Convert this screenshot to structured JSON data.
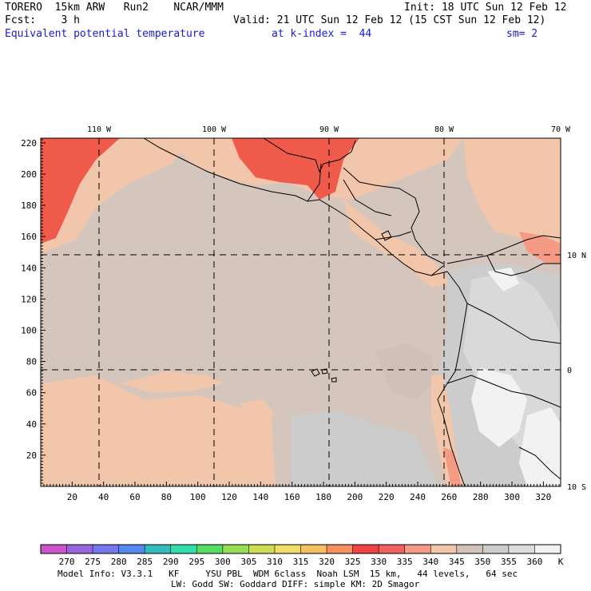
{
  "header": {
    "line1_left": "TORERO  15km ARW   Run2    NCAR/MMM",
    "line1_right": "Init: 18 UTC Sun 12 Feb 12",
    "line2_left": "Fcst:    3 h",
    "line2_right": "Valid: 21 UTC Sun 12 Feb 12 (15 CST Sun 12 Feb 12)",
    "field_name": "Equivalent potential temperature",
    "level": "at k-index =  44",
    "smoothing": "sm= 2"
  },
  "map": {
    "x_ticks": [
      "20",
      "40",
      "60",
      "80",
      "100",
      "120",
      "140",
      "160",
      "180",
      "200",
      "220",
      "240",
      "260",
      "280",
      "300",
      "320"
    ],
    "y_ticks": [
      "20",
      "40",
      "60",
      "80",
      "100",
      "120",
      "140",
      "160",
      "180",
      "200",
      "220"
    ],
    "lon_labels": [
      "110 W",
      "100 W",
      "90 W",
      "80 W",
      "70 W"
    ],
    "lat_labels": [
      "10 N",
      "0",
      "10 S"
    ]
  },
  "colorbar": {
    "labels": [
      "270",
      "275",
      "280",
      "285",
      "290",
      "295",
      "300",
      "305",
      "310",
      "315",
      "320",
      "325",
      "330",
      "335",
      "340",
      "345",
      "350",
      "355",
      "360"
    ],
    "unit": "K",
    "colors": [
      "#cc55cc",
      "#9966dd",
      "#7777ee",
      "#5588ee",
      "#33bbbb",
      "#33ddaa",
      "#55dd66",
      "#99dd55",
      "#ccdd55",
      "#eedd66",
      "#f5c060",
      "#f59060",
      "#ee4444",
      "#f26060",
      "#f59a85",
      "#f2c6aa",
      "#d2c2b8",
      "#cccccc",
      "#dddddd",
      "#f2f2f2"
    ]
  },
  "footer": {
    "line1": "Model Info: V3.3.1   KF     YSU PBL  WDM 6class  Noah LSM  15 km,   44 levels,   64 sec",
    "line2": "LW: Godd SW: Goddard DIFF: simple KM: 2D Smagor"
  }
}
